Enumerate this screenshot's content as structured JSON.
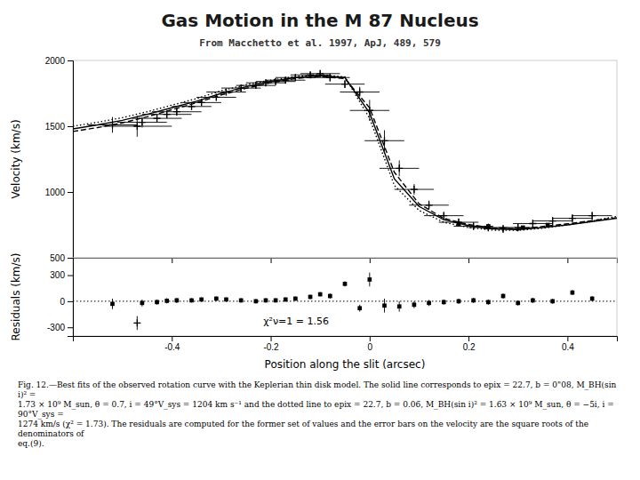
{
  "chart_data": [
    {
      "type": "line",
      "title": "Gas Motion in the M 87 Nucleus",
      "subtitle": "From Macchetto et al. 1997, ApJ, 489, 579",
      "caption": "Fig. 12.—Best fits of the observed rotation curve with the Keplerian thin disk model. The solid line corresponds to epix = 22.7, b = 0\"08, M_BH(sin i)² =\n1.73 × 10⁹ M_sun, θ = 0.7, i = 49°V_sys = 1204 km s⁻¹ and the dotted line to epix = 22.7, b = 0.06, M_BH(sin i)² = 1.63 × 10⁹ M_sun, θ = −5i, i = 90°V_sys =\n1274 km/s (χ² = 1.73). The residuals are computed for the former set of values and the error bars on the velocity are the square roots of the denominators of\neq.(9).",
      "y_label": "Velocity (km/s)",
      "xlim": [
        -0.6,
        0.5
      ],
      "xticks": [
        -0.4,
        -0.2,
        0.0,
        0.2,
        0.4
      ],
      "ylim": [
        500,
        2000
      ],
      "yticks": [
        500,
        1000,
        1500,
        2000
      ],
      "tick_labels": "y",
      "series": [
        {
          "type": "line",
          "line_style": "solid",
          "color": "#000000",
          "x": [
            -0.6,
            -0.55,
            -0.5,
            -0.45,
            -0.4,
            -0.35,
            -0.3,
            -0.25,
            -0.2,
            -0.15,
            -0.1,
            -0.05,
            0.0,
            0.05,
            0.1,
            0.15,
            0.2,
            0.25,
            0.3,
            0.35,
            0.4,
            0.45,
            0.5
          ],
          "values": [
            1480,
            1510,
            1545,
            1590,
            1640,
            1690,
            1750,
            1800,
            1840,
            1870,
            1885,
            1870,
            1600,
            1100,
            890,
            790,
            745,
            720,
            715,
            730,
            750,
            775,
            800
          ]
        },
        {
          "type": "line",
          "line_style": "dotted",
          "color": "#000000",
          "x": [
            -0.6,
            -0.55,
            -0.5,
            -0.45,
            -0.4,
            -0.35,
            -0.3,
            -0.25,
            -0.2,
            -0.15,
            -0.1,
            -0.05,
            0.0,
            0.05,
            0.1,
            0.15,
            0.2,
            0.25,
            0.3,
            0.35,
            0.4,
            0.45,
            0.5
          ],
          "values": [
            1500,
            1530,
            1565,
            1610,
            1660,
            1710,
            1770,
            1815,
            1850,
            1878,
            1892,
            1875,
            1560,
            1050,
            860,
            770,
            730,
            710,
            708,
            725,
            750,
            780,
            815
          ]
        },
        {
          "type": "line",
          "line_style": "dashed",
          "color": "#000000",
          "x": [
            -0.6,
            -0.55,
            -0.5,
            -0.45,
            -0.4,
            -0.35,
            -0.3,
            -0.25,
            -0.2,
            -0.15,
            -0.1,
            -0.05,
            0.0,
            0.05,
            0.1,
            0.15,
            0.2,
            0.25,
            0.3,
            0.35,
            0.4,
            0.45,
            0.5
          ],
          "values": [
            1460,
            1490,
            1525,
            1572,
            1625,
            1678,
            1738,
            1788,
            1830,
            1862,
            1878,
            1862,
            1640,
            1150,
            910,
            800,
            753,
            727,
            720,
            738,
            758,
            782,
            805
          ]
        },
        {
          "type": "scatter",
          "marker": "plus",
          "color": "#000000",
          "x": [
            -0.52,
            -0.46,
            -0.43,
            -0.41,
            -0.39,
            -0.36,
            -0.34,
            -0.31,
            -0.29,
            -0.26,
            -0.23,
            -0.21,
            -0.19,
            -0.17,
            -0.15,
            -0.12,
            -0.1,
            -0.08,
            -0.05,
            -0.02,
            0.0,
            0.03,
            0.06,
            0.09,
            0.12,
            0.15,
            0.18,
            0.21,
            0.24,
            0.27,
            0.3,
            0.33,
            0.37,
            0.41,
            0.45
          ],
          "values": [
            1510,
            1530,
            1560,
            1590,
            1610,
            1650,
            1680,
            1720,
            1760,
            1790,
            1810,
            1830,
            1840,
            1850,
            1870,
            1890,
            1900,
            1870,
            1820,
            1760,
            1620,
            1390,
            1180,
            1020,
            900,
            820,
            770,
            740,
            730,
            720,
            730,
            760,
            780,
            800,
            820
          ],
          "x_errors": [
            0.05,
            0.05,
            0.05,
            0.05,
            0.05,
            0.04,
            0.04,
            0.04,
            0.04,
            0.04,
            0.04,
            0.04,
            0.04,
            0.04,
            0.04,
            0.04,
            0.04,
            0.04,
            0.04,
            0.04,
            0.04,
            0.04,
            0.04,
            0.04,
            0.04,
            0.04,
            0.04,
            0.04,
            0.04,
            0.04,
            0.04,
            0.04,
            0.04,
            0.04,
            0.04
          ],
          "errors": [
            60,
            40,
            30,
            30,
            30,
            25,
            25,
            25,
            25,
            25,
            25,
            25,
            25,
            25,
            25,
            25,
            25,
            30,
            30,
            40,
            80,
            80,
            60,
            40,
            35,
            30,
            30,
            30,
            30,
            30,
            30,
            30,
            30,
            30,
            30
          ]
        },
        {
          "type": "scatter",
          "marker": "plus",
          "color": "#000000",
          "x": [
            -0.47
          ],
          "values": [
            1500
          ],
          "x_errors": [
            0.07
          ],
          "errors": [
            80
          ]
        },
        {
          "type": "scatter",
          "marker": "square",
          "color": "#000000",
          "x": [
            0.18,
            0.24,
            0.31,
            0.36
          ],
          "values": [
            760,
            740,
            730,
            750
          ]
        }
      ]
    },
    {
      "type": "scatter",
      "x_label": "Position along the slit (arcsec)",
      "y_label": "Residuals (km/s)",
      "annotation": "χ²ν=1 = 1.56",
      "xlim": [
        -0.6,
        0.5
      ],
      "xticks": [
        -0.4,
        -0.2,
        0,
        0.2,
        0.4
      ],
      "ylim": [
        -400,
        500
      ],
      "yticks": [
        -300,
        0,
        300
      ],
      "series": [
        {
          "type": "hline",
          "line_style": "dotted",
          "color": "#000000",
          "values": [
            0
          ]
        },
        {
          "type": "scatter",
          "marker": "square",
          "color": "#000000",
          "x": [
            -0.52,
            -0.46,
            -0.43,
            -0.41,
            -0.39,
            -0.36,
            -0.34,
            -0.31,
            -0.29,
            -0.26,
            -0.23,
            -0.21,
            -0.19,
            -0.17,
            -0.15,
            -0.12,
            -0.1,
            -0.08,
            -0.05,
            -0.02,
            0.0,
            0.03,
            0.06,
            0.09,
            0.12,
            0.15,
            0.18,
            0.21,
            0.24,
            0.27,
            0.3,
            0.33,
            0.37,
            0.41,
            0.45
          ],
          "values": [
            -30,
            -20,
            -10,
            5,
            10,
            10,
            20,
            30,
            20,
            10,
            0,
            10,
            10,
            20,
            30,
            50,
            80,
            60,
            200,
            -80,
            250,
            -50,
            -60,
            -40,
            -20,
            -10,
            0,
            10,
            -10,
            60,
            -20,
            10,
            0,
            100,
            30
          ],
          "errors": [
            60,
            40,
            30,
            30,
            30,
            25,
            25,
            25,
            25,
            25,
            25,
            25,
            25,
            25,
            25,
            25,
            25,
            30,
            30,
            40,
            80,
            80,
            60,
            40,
            35,
            30,
            30,
            30,
            30,
            30,
            30,
            30,
            30,
            30,
            30
          ]
        },
        {
          "type": "scatter",
          "marker": "plus",
          "color": "#000000",
          "x": [
            -0.47
          ],
          "values": [
            -250
          ],
          "errors": [
            80
          ]
        }
      ]
    }
  ]
}
